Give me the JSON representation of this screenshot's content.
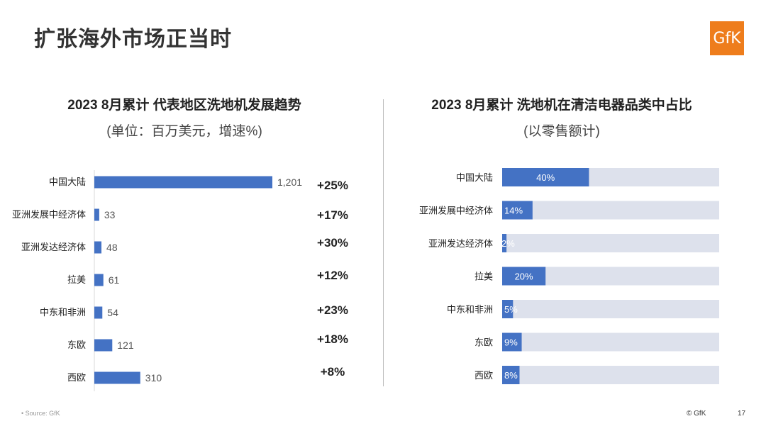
{
  "page": {
    "title": "扩张海外市场正当时",
    "logo_text": "GfK",
    "source": "Source: GfK",
    "copyright": "© GfK",
    "page_number": "17"
  },
  "colors": {
    "bar": "#4472c4",
    "track": "#dde1ec",
    "logo": "#ee7d1c"
  },
  "chart_data": [
    {
      "type": "bar",
      "orientation": "horizontal",
      "title": "2023 8月累计 代表地区洗地机发展趋势",
      "subtitle": "(单位：百万美元，增速%)",
      "categories": [
        "中国大陆",
        "亚洲发展中经济体",
        "亚洲发达经济体",
        "拉美",
        "中东和非洲",
        "东欧",
        "西欧"
      ],
      "values": [
        1201,
        33,
        48,
        61,
        54,
        121,
        310
      ],
      "value_labels": [
        "1,201",
        "33",
        "48",
        "61",
        "54",
        "121",
        "310"
      ],
      "growth_labels": [
        "+25%",
        "+17%",
        "+30%",
        "+12%",
        "+23%",
        "+18%",
        "+8%"
      ],
      "xlim": [
        0,
        1201
      ]
    },
    {
      "type": "bar",
      "orientation": "horizontal",
      "title": "2023 8月累计 洗地机在清洁电器品类中占比",
      "subtitle": "(以零售额计)",
      "categories": [
        "中国大陆",
        "亚洲发展中经济体",
        "亚洲发达经济体",
        "拉美",
        "中东和非洲",
        "东欧",
        "西欧"
      ],
      "values": [
        40,
        14,
        2,
        20,
        5,
        9,
        8
      ],
      "value_labels": [
        "40%",
        "14%",
        "2%",
        "20%",
        "5%",
        "9%",
        "8%"
      ],
      "xlim": [
        0,
        100
      ]
    }
  ]
}
